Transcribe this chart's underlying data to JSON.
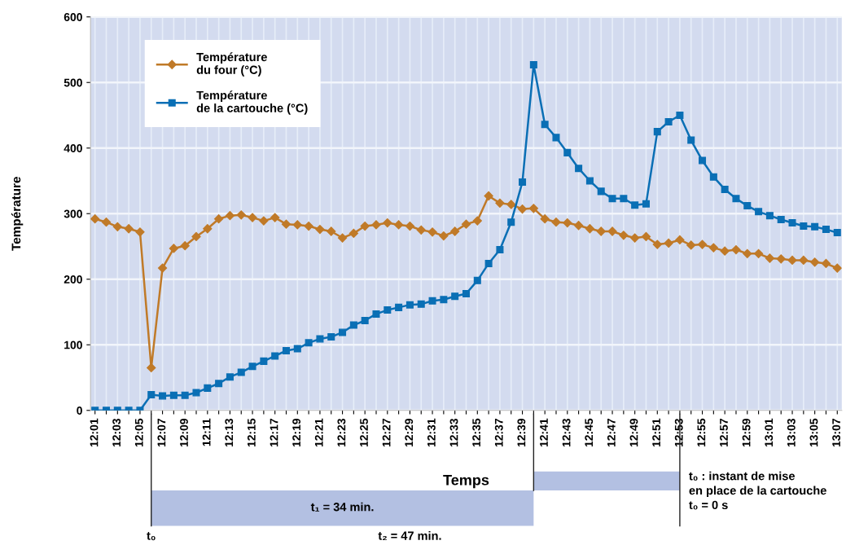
{
  "chart_data": {
    "type": "line",
    "xlabel": "Temps",
    "ylabel": "Température",
    "categories": [
      "12:01",
      null,
      "12:03",
      null,
      "12:05",
      null,
      "12:07",
      null,
      "12:09",
      null,
      "12:11",
      null,
      "12:13",
      null,
      "12:15",
      null,
      "12:17",
      null,
      "12:19",
      null,
      "12:21",
      null,
      "12:23",
      null,
      "12:25",
      null,
      "12:27",
      null,
      "12:29",
      null,
      "12:31",
      null,
      "12:33",
      null,
      "12:35",
      null,
      "12:37",
      null,
      "12:39",
      null,
      "12:41",
      null,
      "12:43",
      null,
      "12:45",
      null,
      "12:47",
      null,
      "12:49",
      null,
      "12:51",
      null,
      "12:53",
      null,
      "12:55",
      null,
      "12:57",
      null,
      "12:59",
      null,
      "13:01",
      null,
      "13:03",
      null,
      "13:05",
      null,
      "13:07"
    ],
    "series": [
      {
        "name": "Température\ndu four (°C)",
        "color": "#c07a28",
        "marker": "diamond",
        "values": [
          292,
          287,
          280,
          277,
          272,
          65,
          217,
          247,
          251,
          265,
          277,
          292,
          297,
          298,
          294,
          289,
          294,
          284,
          283,
          281,
          276,
          273,
          263,
          270,
          281,
          283,
          286,
          283,
          281,
          275,
          272,
          266,
          273,
          284,
          289,
          327,
          316,
          314,
          307,
          308,
          292,
          287,
          286,
          282,
          277,
          273,
          273,
          267,
          263,
          265,
          253,
          255,
          260,
          252,
          253,
          248,
          243,
          245,
          239,
          239,
          232,
          231,
          229,
          229,
          226,
          224,
          217
        ]
      },
      {
        "name": "Température\nde la cartouche (°C)",
        "color": "#0a6fb5",
        "marker": "square",
        "values": [
          0,
          0,
          0,
          0,
          0,
          24,
          22,
          23,
          23,
          27,
          34,
          41,
          51,
          58,
          67,
          75,
          83,
          91,
          94,
          103,
          109,
          112,
          119,
          130,
          137,
          147,
          153,
          157,
          161,
          162,
          167,
          169,
          174,
          178,
          198,
          224,
          245,
          287,
          348,
          527,
          436,
          416,
          393,
          369,
          350,
          334,
          323,
          323,
          313,
          315,
          425,
          440,
          450,
          412,
          381,
          356,
          337,
          323,
          312,
          303,
          297,
          291,
          286,
          281,
          280,
          276,
          271
        ]
      }
    ],
    "ylim": [
      0,
      600
    ],
    "yticks": [
      0,
      100,
      200,
      300,
      400,
      500,
      600
    ],
    "grid": true,
    "legend": "top left",
    "annotations": [
      "t₁ = 34 min.",
      "t₂ = 47 min.",
      "t₀",
      "t₀ : instant de mise\nen place de la cartouche\nt₀ = 0 s"
    ]
  }
}
